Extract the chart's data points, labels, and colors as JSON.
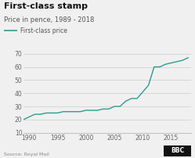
{
  "title": "First-class stamp",
  "subtitle": "Price in pence, 1989 - 2018",
  "legend_label": "First-class price",
  "source": "Source: Royal Mail",
  "line_color": "#2a9d8f",
  "background_color": "#f0f0f0",
  "plot_bg_color": "#f0f0f0",
  "ylim": [
    10,
    70
  ],
  "xlim": [
    1989,
    2018.5
  ],
  "yticks": [
    10,
    20,
    30,
    40,
    50,
    60,
    70
  ],
  "xticks": [
    1990,
    1995,
    2000,
    2005,
    2010,
    2015
  ],
  "data": {
    "years": [
      1989,
      1990,
      1991,
      1992,
      1993,
      1994,
      1995,
      1996,
      1997,
      1998,
      1999,
      2000,
      2001,
      2002,
      2003,
      2004,
      2005,
      2006,
      2007,
      2008,
      2009,
      2010,
      2011,
      2012,
      2013,
      2014,
      2015,
      2016,
      2017,
      2018
    ],
    "prices": [
      20,
      22,
      24,
      24,
      25,
      25,
      25,
      26,
      26,
      26,
      26,
      27,
      27,
      27,
      28,
      28,
      30,
      30,
      34,
      36,
      36,
      41,
      46,
      60,
      60,
      62,
      63,
      64,
      65,
      67
    ]
  },
  "title_fontsize": 8,
  "subtitle_fontsize": 6,
  "legend_fontsize": 5.5,
  "tick_fontsize": 5.5,
  "source_fontsize": 4.5
}
